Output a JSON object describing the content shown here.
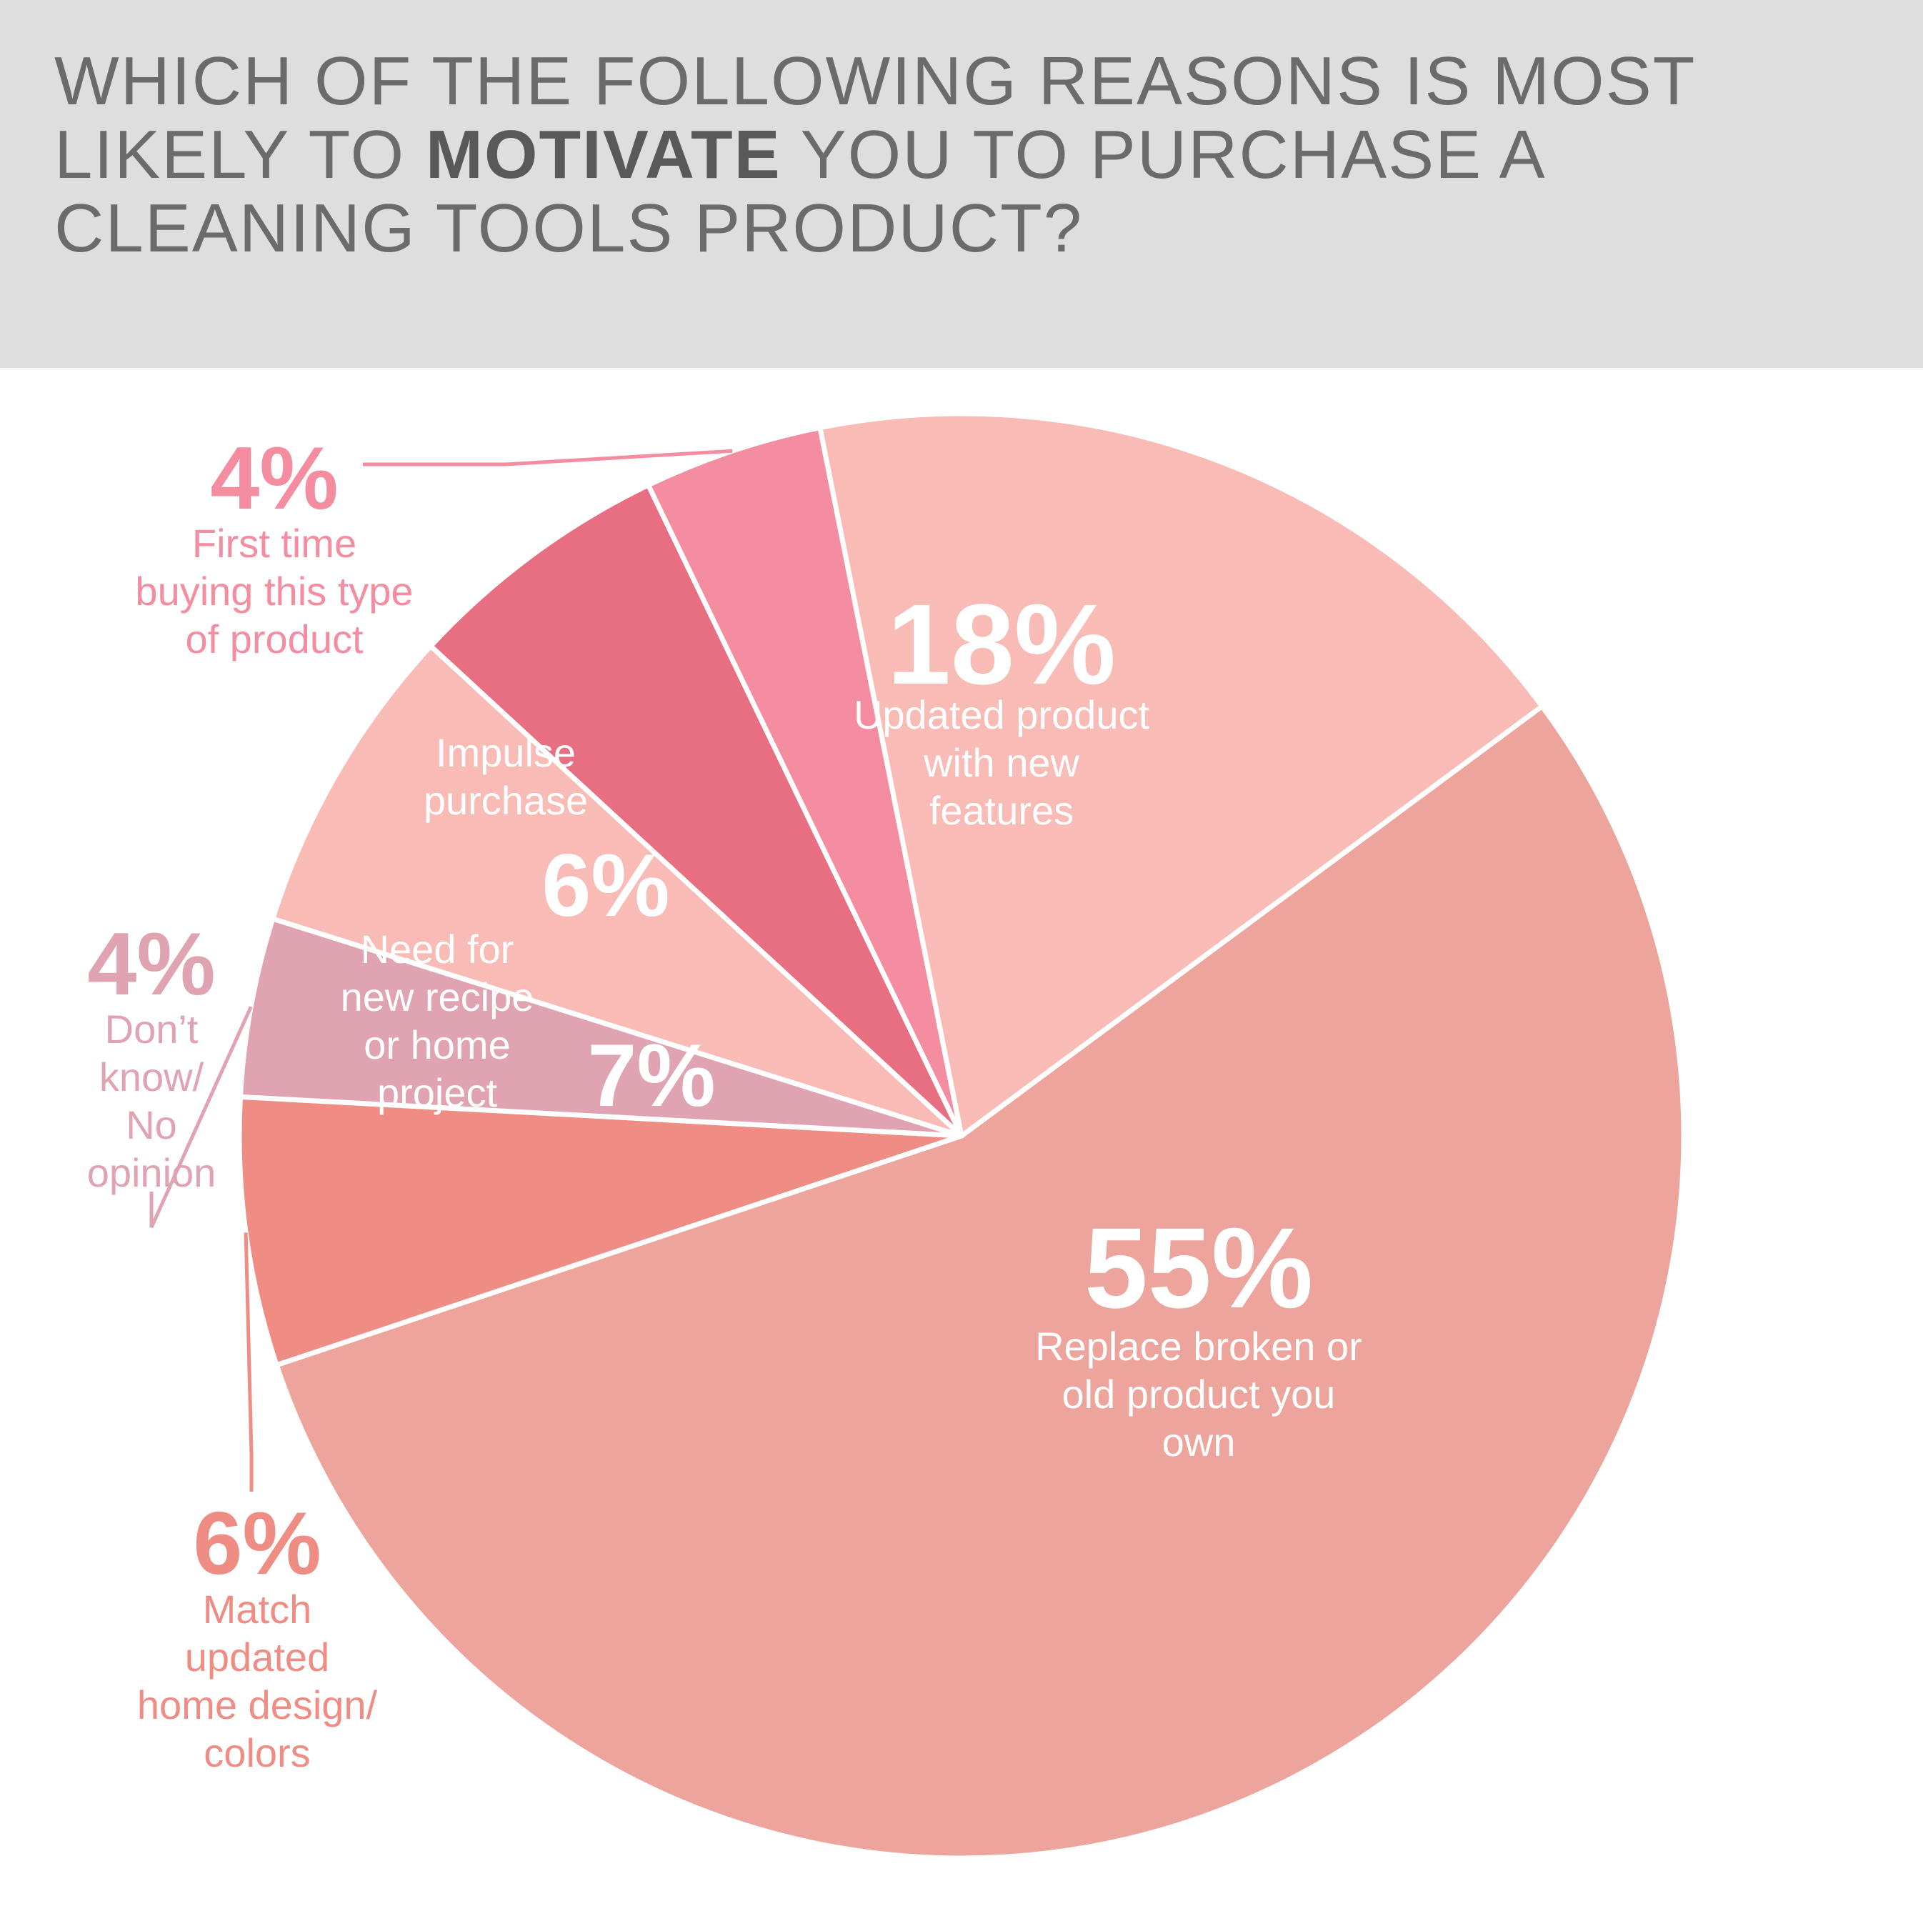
{
  "header": {
    "title_before": "WHICH OF THE FOLLOWING REASONS IS MOST LIKELY TO",
    "title_emphasis": "MOTIVATE",
    "title_after": "YOU TO PURCHASE A CLEANING TOOLS PRODUCT?"
  },
  "colors": {
    "header_bg": "#dedede",
    "title_text": "#6b6b6b",
    "slice_separator": "#ffffff"
  },
  "chart_data": {
    "type": "pie",
    "title": "WHICH OF THE FOLLOWING REASONS IS MOST LIKELY TO MOTIVATE YOU TO PURCHASE A CLEANING TOOLS PRODUCT?",
    "start_angle_deg": 53.5,
    "direction": "clockwise",
    "slices": [
      {
        "key": "replace",
        "label": "Replace broken or old product you own",
        "value": 55,
        "display": "55%",
        "color": "#eda49c"
      },
      {
        "key": "match",
        "label": "Match updated home design/ colors",
        "value": 6,
        "display": "6%",
        "color": "#ef8c83"
      },
      {
        "key": "dontknow",
        "label": "Don’t know/ No opinion",
        "value": 4,
        "display": "4%",
        "color": "#e0a3b2"
      },
      {
        "key": "recipe",
        "label": "Need for new recipe or home project",
        "value": 7,
        "display": "7%",
        "color": "#f8bbb6"
      },
      {
        "key": "impulse",
        "label": "Impulse purchase",
        "value": 6,
        "display": "6%",
        "color": "#e86f82"
      },
      {
        "key": "firsttime",
        "label": "First time buying this type of product",
        "value": 4,
        "display": "4%",
        "color": "#f38d9f"
      },
      {
        "key": "updated",
        "label": "Updated product with new features",
        "value": 18,
        "display": "18%",
        "color": "#f8bbb6"
      }
    ],
    "legend": "none"
  },
  "label_lines": {
    "replace": [
      "Replace broken or",
      "old product you",
      "own"
    ],
    "match": [
      "Match",
      "updated",
      "home design/",
      "colors"
    ],
    "dontknow": [
      "Don’t",
      "know/",
      "No",
      "opinion"
    ],
    "recipe": [
      "Need for",
      "new recipe",
      "or home",
      "project"
    ],
    "impulse": [
      "Impulse",
      "purchase"
    ],
    "firsttime": [
      "First time",
      "buying this type",
      "of product"
    ],
    "updated": [
      "Updated product",
      "with new",
      "features"
    ]
  }
}
